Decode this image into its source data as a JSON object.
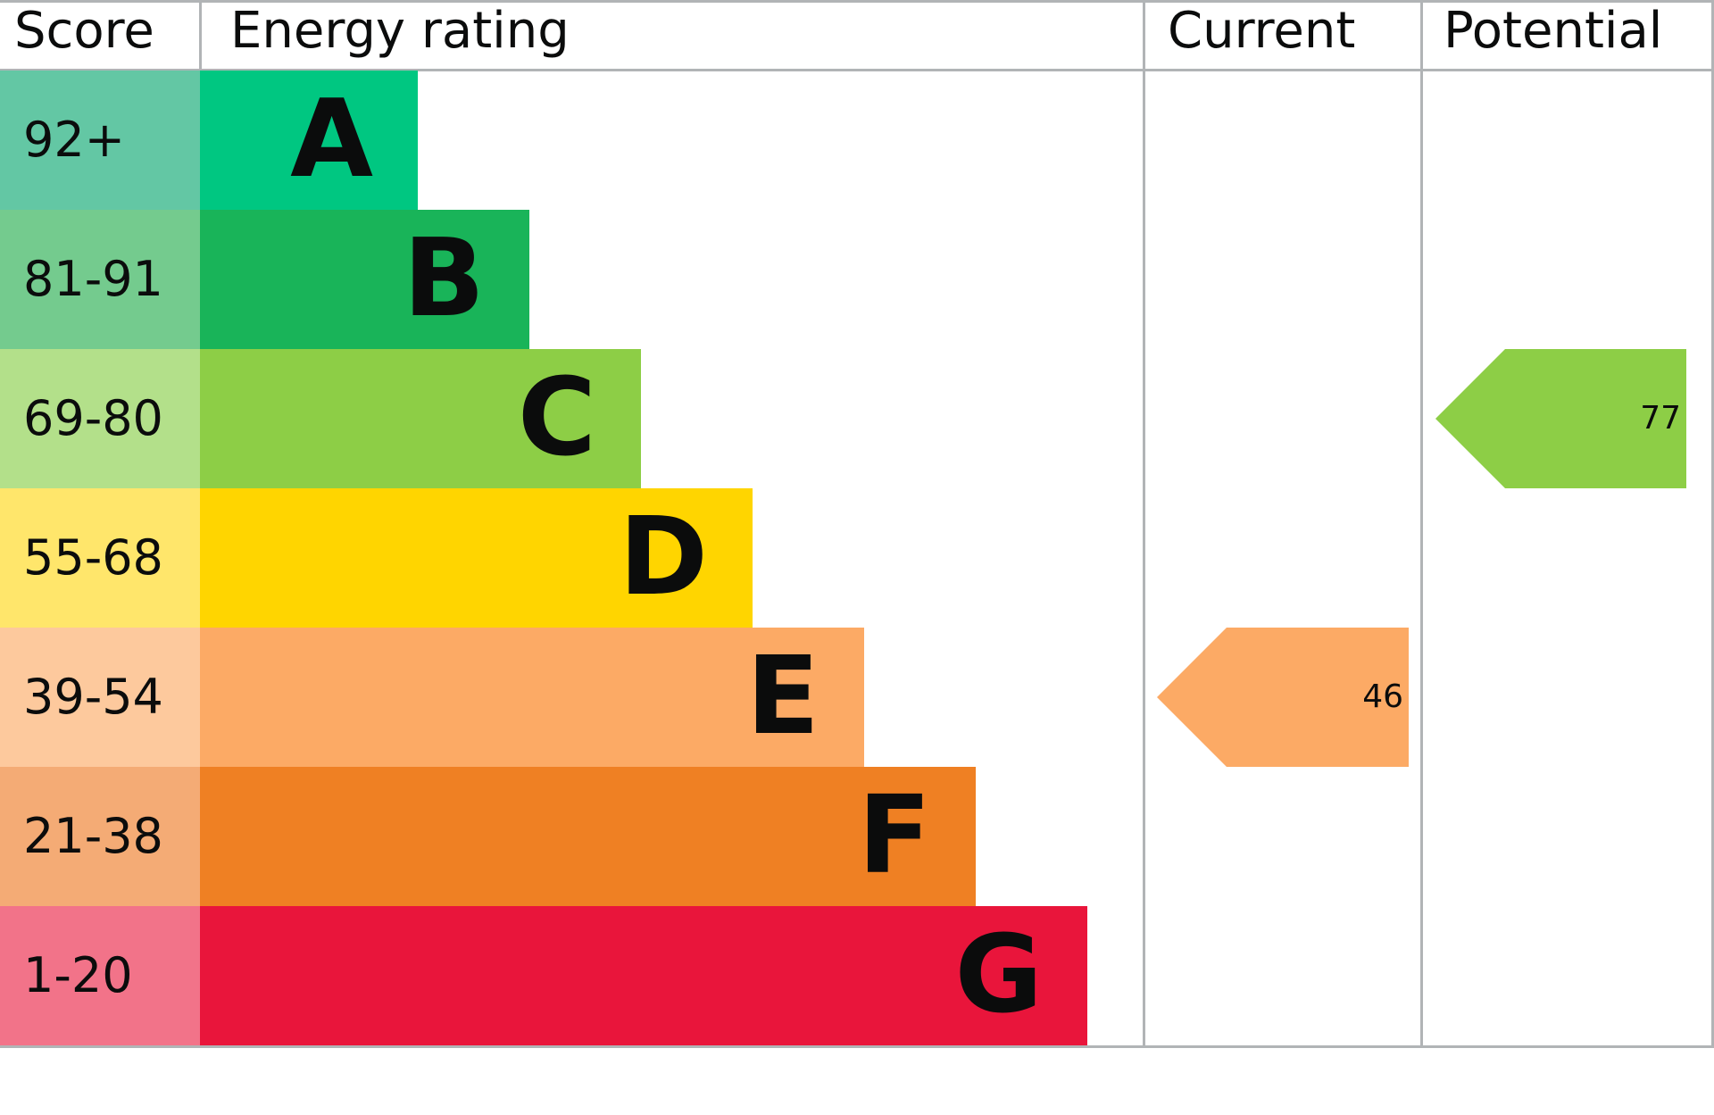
{
  "chart_data": {
    "type": "table",
    "headers": {
      "score": "Score",
      "rating": "Energy rating",
      "current": "Current",
      "potential": "Potential"
    },
    "bands": [
      {
        "score": "92+",
        "letter": "A",
        "color": "#00c781",
        "score_color": "#63c7a4"
      },
      {
        "score": "81-91",
        "letter": "B",
        "color": "#19b459",
        "score_color": "#74cb8e"
      },
      {
        "score": "69-80",
        "letter": "C",
        "color": "#8dce46",
        "score_color": "#b3e08a"
      },
      {
        "score": "55-68",
        "letter": "D",
        "color": "#ffd500",
        "score_color": "#ffe66b"
      },
      {
        "score": "39-54",
        "letter": "E",
        "color": "#fcaa65",
        "score_color": "#fdc99d"
      },
      {
        "score": "21-38",
        "letter": "F",
        "color": "#ef8023",
        "score_color": "#f4ab75"
      },
      {
        "score": "1-20",
        "letter": "G",
        "color": "#e9153b",
        "score_color": "#f27389"
      }
    ],
    "current": {
      "value": "46",
      "band": "E",
      "color": "#fcaa65"
    },
    "potential": {
      "value": "77",
      "band": "C",
      "color": "#8dce46"
    }
  }
}
